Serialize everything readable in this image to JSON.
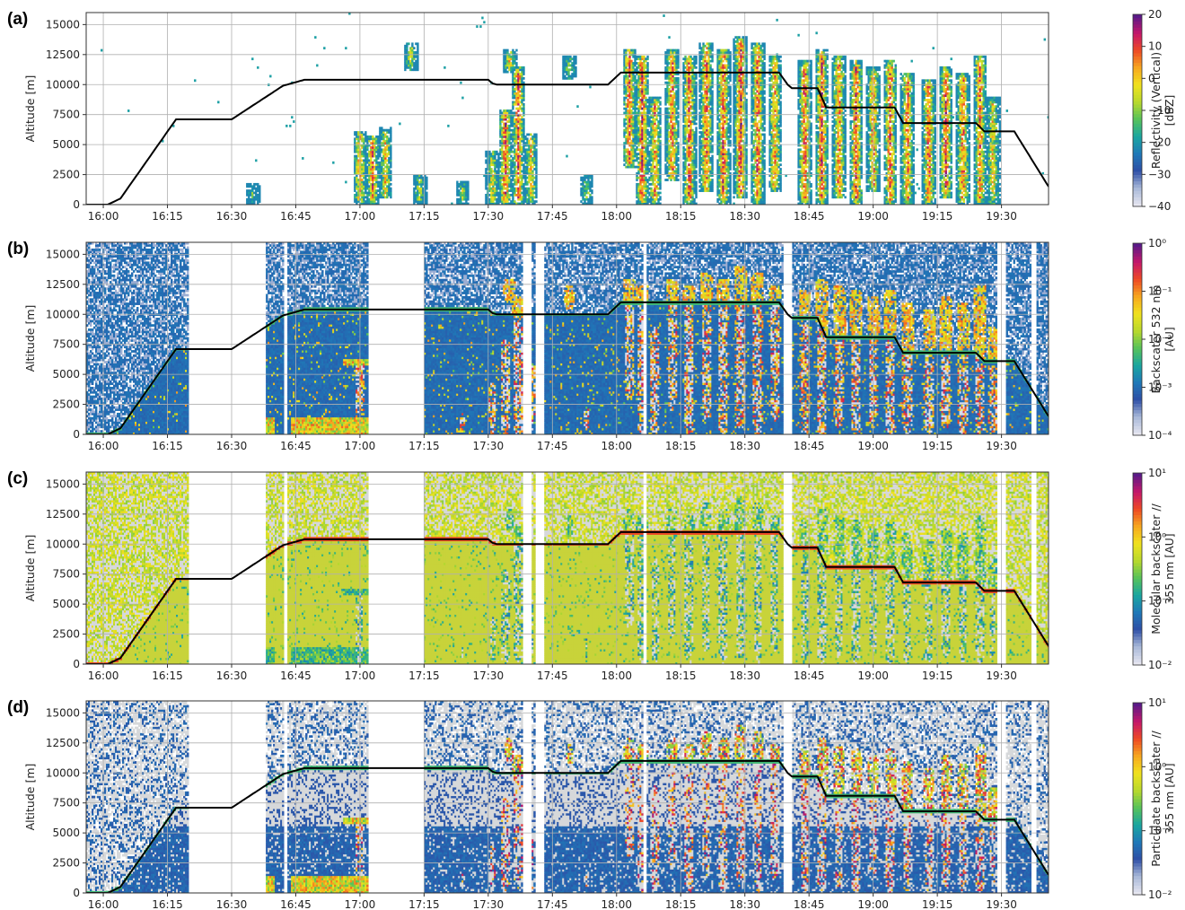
{
  "colors": {
    "background": "#ffffff",
    "no_data": "#ffffff",
    "grid": "#b0b0b0",
    "flight_track": "#000000",
    "colormap_stops": [
      "#e6e6f0",
      "#a8b8d8",
      "#2e4fa6",
      "#1f79b8",
      "#1aa6a0",
      "#57c25a",
      "#b8d92c",
      "#f0e21e",
      "#f7a81f",
      "#ee4a24",
      "#c5176a",
      "#5b1a88"
    ],
    "molecular_clear_air": "#c8d33a",
    "clear_air_gray": "#d6d8da"
  },
  "chart_data": [
    {
      "type": "heatmap",
      "panel_label": "(a)",
      "ylabel": "Altitude [m]",
      "xlim": [
        "15:56",
        "19:41"
      ],
      "ylim": [
        0,
        16000
      ],
      "x_ticks": [
        "16:00",
        "16:15",
        "16:30",
        "16:45",
        "17:00",
        "17:15",
        "17:30",
        "17:45",
        "18:00",
        "18:15",
        "18:30",
        "18:45",
        "19:00",
        "19:15",
        "19:30"
      ],
      "y_ticks": [
        0,
        2500,
        5000,
        7500,
        10000,
        12500,
        15000
      ],
      "grid": true,
      "colorbar": {
        "label": "Reflectivity (Vertical)\n[dBZ]",
        "scale": "linear",
        "range": [
          -40,
          20
        ],
        "ticks": [
          {
            "value": -40,
            "label": "−40"
          },
          {
            "value": -30,
            "label": "−30"
          },
          {
            "value": -20,
            "label": "−20"
          },
          {
            "value": -10,
            "label": "−10"
          },
          {
            "value": 0,
            "label": "0"
          },
          {
            "value": 10,
            "label": "10"
          },
          {
            "value": 20,
            "label": "20"
          }
        ]
      },
      "data_gaps": [],
      "field": "radar"
    },
    {
      "type": "heatmap",
      "panel_label": "(b)",
      "ylabel": "Altitude [m]",
      "xlim": [
        "15:56",
        "19:41"
      ],
      "ylim": [
        0,
        16000
      ],
      "x_ticks": [
        "16:00",
        "16:15",
        "16:30",
        "16:45",
        "17:00",
        "17:15",
        "17:30",
        "17:45",
        "18:00",
        "18:15",
        "18:30",
        "18:45",
        "19:00",
        "19:15",
        "19:30"
      ],
      "y_ticks": [
        0,
        2500,
        5000,
        7500,
        10000,
        12500,
        15000
      ],
      "grid": true,
      "colorbar": {
        "label": "Backscater 532 nm\n[AU]",
        "scale": "log",
        "range": [
          -4,
          0
        ],
        "ticks": [
          {
            "value": -4,
            "label": "10⁻⁴"
          },
          {
            "value": -3,
            "label": "10⁻³"
          },
          {
            "value": -2,
            "label": "10⁻²"
          },
          {
            "value": -1,
            "label": "10⁻¹"
          },
          {
            "value": 0,
            "label": "10⁰"
          }
        ]
      },
      "data_gaps": [
        [
          "16:20",
          "16:38"
        ],
        [
          "16:42",
          "16:43"
        ],
        [
          "17:02",
          "17:15"
        ],
        [
          "17:38",
          "17:40"
        ],
        [
          "17:41",
          "17:43"
        ],
        [
          "18:06",
          "18:07"
        ],
        [
          "18:39",
          "18:41"
        ],
        [
          "19:29",
          "19:31"
        ],
        [
          "19:37",
          "19:38"
        ]
      ],
      "field": "lidar532"
    },
    {
      "type": "heatmap",
      "panel_label": "(c)",
      "ylabel": "Altitude [m]",
      "xlim": [
        "15:56",
        "19:41"
      ],
      "ylim": [
        0,
        16000
      ],
      "x_ticks": [
        "16:00",
        "16:15",
        "16:30",
        "16:45",
        "17:00",
        "17:15",
        "17:30",
        "17:45",
        "18:00",
        "18:15",
        "18:30",
        "18:45",
        "19:00",
        "19:15",
        "19:30"
      ],
      "y_ticks": [
        0,
        2500,
        5000,
        7500,
        10000,
        12500,
        15000
      ],
      "grid": true,
      "colorbar": {
        "label": "Molecular backscater //\n355 nm [AU]",
        "scale": "log",
        "range": [
          -2,
          1
        ],
        "ticks": [
          {
            "value": -2,
            "label": "10⁻²"
          },
          {
            "value": -1,
            "label": "10⁻¹"
          },
          {
            "value": 0,
            "label": "10⁰"
          },
          {
            "value": 1,
            "label": "10¹"
          }
        ]
      },
      "data_gaps": [
        [
          "16:20",
          "16:38"
        ],
        [
          "16:42",
          "16:43"
        ],
        [
          "17:02",
          "17:15"
        ],
        [
          "17:38",
          "17:40"
        ],
        [
          "17:41",
          "17:43"
        ],
        [
          "18:06",
          "18:07"
        ],
        [
          "18:39",
          "18:41"
        ],
        [
          "19:29",
          "19:31"
        ],
        [
          "19:37",
          "19:38"
        ]
      ],
      "field": "molecular"
    },
    {
      "type": "heatmap",
      "panel_label": "(d)",
      "ylabel": "Altitude [m]",
      "xlim": [
        "15:56",
        "19:41"
      ],
      "ylim": [
        0,
        16000
      ],
      "x_ticks": [
        "16:00",
        "16:15",
        "16:30",
        "16:45",
        "17:00",
        "17:15",
        "17:30",
        "17:45",
        "18:00",
        "18:15",
        "18:30",
        "18:45",
        "19:00",
        "19:15",
        "19:30"
      ],
      "y_ticks": [
        0,
        2500,
        5000,
        7500,
        10000,
        12500,
        15000
      ],
      "grid": true,
      "colorbar": {
        "label": "Particulate backscater //\n355 nm [AU]",
        "scale": "log",
        "range": [
          -2,
          1
        ],
        "ticks": [
          {
            "value": -2,
            "label": "10⁻²"
          },
          {
            "value": -1,
            "label": "10⁻¹"
          },
          {
            "value": 0,
            "label": "10⁰"
          },
          {
            "value": 1,
            "label": "10¹"
          }
        ]
      },
      "data_gaps": [
        [
          "16:20",
          "16:38"
        ],
        [
          "16:42",
          "16:43"
        ],
        [
          "17:02",
          "17:15"
        ],
        [
          "17:38",
          "17:40"
        ],
        [
          "17:41",
          "17:43"
        ],
        [
          "18:06",
          "18:07"
        ],
        [
          "18:39",
          "18:41"
        ],
        [
          "19:29",
          "19:31"
        ],
        [
          "19:37",
          "19:38"
        ]
      ],
      "field": "particulate"
    }
  ],
  "flight_altitude": {
    "time": [
      "15:56",
      "16:01",
      "16:04",
      "16:17",
      "16:30",
      "16:42",
      "16:47",
      "17:30",
      "17:31",
      "17:32",
      "17:58",
      "18:01",
      "18:38",
      "18:40",
      "18:41",
      "18:47",
      "18:49",
      "19:05",
      "19:07",
      "19:24",
      "19:26",
      "19:33",
      "19:41"
    ],
    "altitude_m": [
      0,
      0,
      500,
      7100,
      7100,
      9900,
      10400,
      10400,
      10100,
      10000,
      10000,
      11000,
      11000,
      10000,
      9700,
      9700,
      8100,
      8100,
      6800,
      6800,
      6100,
      6100,
      1500
    ]
  },
  "cloud_cells": [
    {
      "t": "16:35",
      "base": 0,
      "top": 1800,
      "v": 0.42
    },
    {
      "t": "17:00",
      "base": 0,
      "top": 6200,
      "v": 0.78
    },
    {
      "t": "17:03",
      "base": 0,
      "top": 5800,
      "v": 0.85
    },
    {
      "t": "17:06",
      "base": 500,
      "top": 6400,
      "v": 0.72
    },
    {
      "t": "17:12",
      "base": 11200,
      "top": 13500,
      "v": 0.62
    },
    {
      "t": "17:14",
      "base": 0,
      "top": 2500,
      "v": 0.6
    },
    {
      "t": "17:24",
      "base": 0,
      "top": 2000,
      "v": 0.55
    },
    {
      "t": "17:31",
      "base": 0,
      "top": 4500,
      "v": 0.65
    },
    {
      "t": "17:34",
      "base": 0,
      "top": 8000,
      "v": 0.9
    },
    {
      "t": "17:35",
      "base": 11000,
      "top": 13000,
      "v": 0.7
    },
    {
      "t": "17:37",
      "base": 0,
      "top": 11500,
      "v": 0.88
    },
    {
      "t": "17:40",
      "base": 0,
      "top": 6000,
      "v": 0.7
    },
    {
      "t": "17:49",
      "base": 10500,
      "top": 12500,
      "v": 0.55
    },
    {
      "t": "17:53",
      "base": 0,
      "top": 2500,
      "v": 0.55
    },
    {
      "t": "18:03",
      "base": 3000,
      "top": 13000,
      "v": 0.88
    },
    {
      "t": "18:06",
      "base": 0,
      "top": 12500,
      "v": 0.92
    },
    {
      "t": "18:09",
      "base": 0,
      "top": 9000,
      "v": 0.8
    },
    {
      "t": "18:13",
      "base": 2000,
      "top": 13000,
      "v": 0.85
    },
    {
      "t": "18:17",
      "base": 0,
      "top": 12500,
      "v": 0.9
    },
    {
      "t": "18:21",
      "base": 1000,
      "top": 13500,
      "v": 0.88
    },
    {
      "t": "18:25",
      "base": 0,
      "top": 13000,
      "v": 0.9
    },
    {
      "t": "18:29",
      "base": 500,
      "top": 14000,
      "v": 0.93
    },
    {
      "t": "18:33",
      "base": 0,
      "top": 13500,
      "v": 0.88
    },
    {
      "t": "18:37",
      "base": 1000,
      "top": 12500,
      "v": 0.8
    },
    {
      "t": "18:44",
      "base": 0,
      "top": 12000,
      "v": 0.88
    },
    {
      "t": "18:48",
      "base": 0,
      "top": 13000,
      "v": 0.9
    },
    {
      "t": "18:52",
      "base": 500,
      "top": 12500,
      "v": 0.85
    },
    {
      "t": "18:56",
      "base": 0,
      "top": 12000,
      "v": 0.9
    },
    {
      "t": "19:00",
      "base": 1000,
      "top": 11500,
      "v": 0.82
    },
    {
      "t": "19:04",
      "base": 0,
      "top": 12000,
      "v": 0.88
    },
    {
      "t": "19:08",
      "base": 0,
      "top": 11000,
      "v": 0.85
    },
    {
      "t": "19:13",
      "base": 0,
      "top": 10500,
      "v": 0.88
    },
    {
      "t": "19:17",
      "base": 500,
      "top": 11500,
      "v": 0.9
    },
    {
      "t": "19:21",
      "base": 0,
      "top": 11000,
      "v": 0.86
    },
    {
      "t": "19:25",
      "base": 0,
      "top": 12500,
      "v": 0.85
    },
    {
      "t": "19:28",
      "base": 0,
      "top": 9000,
      "v": 0.7
    }
  ],
  "aerosol_layers": [
    {
      "t0": "16:20",
      "t1": "16:40",
      "base": 0,
      "top": 1500
    },
    {
      "t0": "16:44",
      "t1": "17:02",
      "base": 0,
      "top": 1500
    },
    {
      "t0": "16:56",
      "t1": "17:02",
      "base": 5800,
      "top": 6300
    }
  ]
}
